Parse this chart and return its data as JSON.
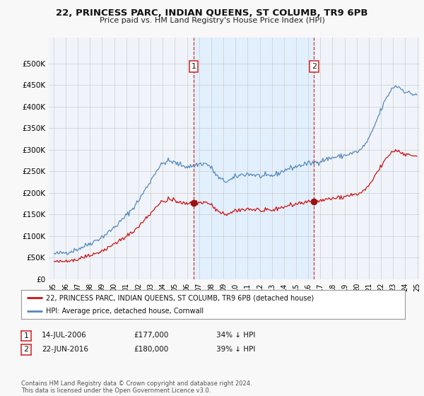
{
  "title": "22, PRINCESS PARC, INDIAN QUEENS, ST COLUMB, TR9 6PB",
  "subtitle": "Price paid vs. HM Land Registry's House Price Index (HPI)",
  "hpi_color": "#5588bb",
  "price_color": "#cc1111",
  "marker_color": "#991111",
  "dashed_color": "#cc3333",
  "background_color": "#f8f8f8",
  "plot_bg_color": "#f0f4fa",
  "shade_color": "#ddeeff",
  "grid_color": "#cccccc",
  "ylim": [
    0,
    560000
  ],
  "yticks": [
    0,
    50000,
    100000,
    150000,
    200000,
    250000,
    300000,
    350000,
    400000,
    450000,
    500000
  ],
  "legend_entry1": "22, PRINCESS PARC, INDIAN QUEENS, ST COLUMB, TR9 6PB (detached house)",
  "legend_entry2": "HPI: Average price, detached house, Cornwall",
  "table_rows": [
    {
      "num": "1",
      "date": "14-JUL-2006",
      "price": "£177,000",
      "hpi": "34% ↓ HPI"
    },
    {
      "num": "2",
      "date": "22-JUN-2016",
      "price": "£180,000",
      "hpi": "39% ↓ HPI"
    }
  ],
  "footnote": "Contains HM Land Registry data © Crown copyright and database right 2024.\nThis data is licensed under the Open Government Licence v3.0.",
  "sale1_year": 2006.54,
  "sale1_price": 177000,
  "sale2_year": 2016.47,
  "sale2_price": 180000
}
